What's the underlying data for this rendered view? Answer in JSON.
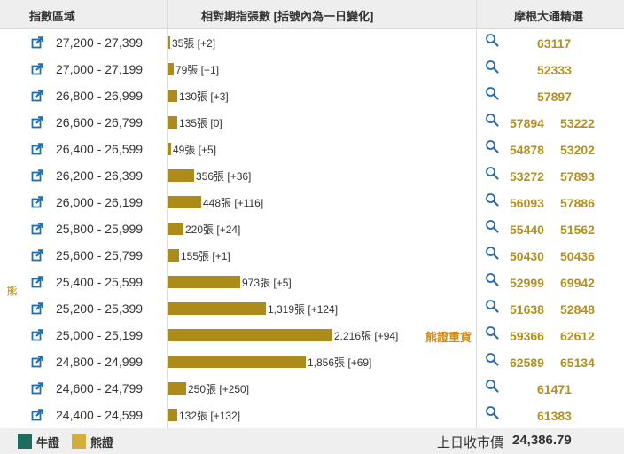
{
  "header": {
    "col1": "指數區域",
    "col2": "相對期指張數 [括號內為一日變化]",
    "col3": "摩根大通精選"
  },
  "side_label": "熊",
  "heavy_label": "熊證重貨",
  "bar_color": "#ad8b1a",
  "rows": [
    {
      "range": "27,200 - 27,399",
      "count": 35,
      "label": "35張 [+2]",
      "codes": [
        "63117"
      ]
    },
    {
      "range": "27,000 - 27,199",
      "count": 79,
      "label": "79張 [+1]",
      "codes": [
        "52333"
      ]
    },
    {
      "range": "26,800 - 26,999",
      "count": 130,
      "label": "130張 [+3]",
      "codes": [
        "57897"
      ]
    },
    {
      "range": "26,600 - 26,799",
      "count": 135,
      "label": "135張 [0]",
      "codes": [
        "57894",
        "53222"
      ]
    },
    {
      "range": "26,400 - 26,599",
      "count": 49,
      "label": "49張 [+5]",
      "codes": [
        "54878",
        "53202"
      ]
    },
    {
      "range": "26,200 - 26,399",
      "count": 356,
      "label": "356張 [+36]",
      "codes": [
        "53272",
        "57893"
      ]
    },
    {
      "range": "26,000 - 26,199",
      "count": 448,
      "label": "448張 [+116]",
      "codes": [
        "56093",
        "57886"
      ]
    },
    {
      "range": "25,800 - 25,999",
      "count": 220,
      "label": "220張 [+24]",
      "codes": [
        "55440",
        "51562"
      ]
    },
    {
      "range": "25,600 - 25,799",
      "count": 155,
      "label": "155張 [+1]",
      "codes": [
        "50430",
        "50436"
      ]
    },
    {
      "range": "25,400 - 25,599",
      "count": 973,
      "label": "973張 [+5]",
      "codes": [
        "52999",
        "69942"
      ]
    },
    {
      "range": "25,200 - 25,399",
      "count": 1319,
      "label": "1,319張 [+124]",
      "codes": [
        "51638",
        "52848"
      ]
    },
    {
      "range": "25,000 - 25,199",
      "count": 2216,
      "label": "2,216張 [+94]",
      "codes": [
        "59366",
        "62612"
      ],
      "heavy": true
    },
    {
      "range": "24,800 - 24,999",
      "count": 1856,
      "label": "1,856張 [+69]",
      "codes": [
        "62589",
        "65134"
      ]
    },
    {
      "range": "24,600 - 24,799",
      "count": 250,
      "label": "250張 [+250]",
      "codes": [
        "61471"
      ]
    },
    {
      "range": "24,400 - 24,599",
      "count": 132,
      "label": "132張 [+132]",
      "codes": [
        "61383"
      ]
    }
  ],
  "footer": {
    "legend": [
      {
        "label": "牛證",
        "color": "#1e6b5f"
      },
      {
        "label": "熊證",
        "color": "#d4ae3c"
      }
    ],
    "close_label": "上日收市價",
    "close_value": "24,386.79"
  }
}
